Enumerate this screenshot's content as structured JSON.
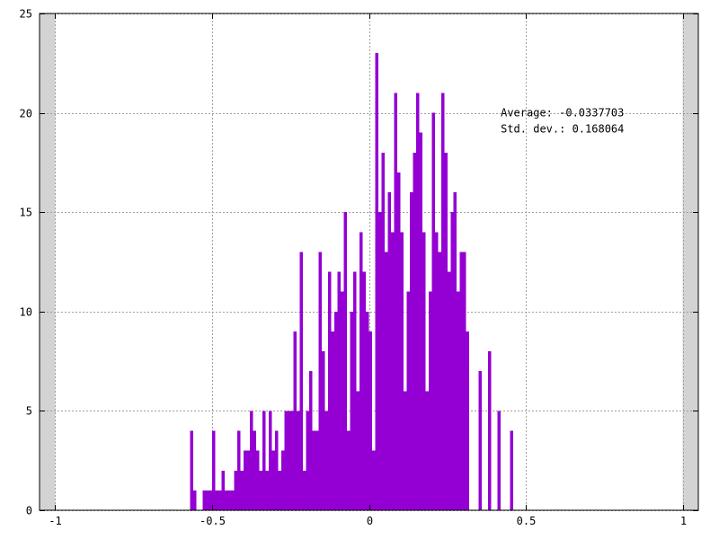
{
  "chart_data": {
    "type": "bar",
    "title": "",
    "xlabel": "",
    "ylabel": "",
    "xlim": [
      -1.05,
      1.05
    ],
    "ylim": [
      0,
      25
    ],
    "grid": true,
    "legend": "none",
    "bar_color": "#9400d3",
    "shaded_regions_color": "#d3d3d3",
    "shaded_regions": [
      [
        -1.05,
        -1.0
      ],
      [
        1.0,
        1.05
      ]
    ],
    "bin_width": 0.01,
    "x_ticks": [
      {
        "value": -1,
        "label": "-1"
      },
      {
        "value": -0.5,
        "label": "-0.5"
      },
      {
        "value": 0,
        "label": "0"
      },
      {
        "value": 0.5,
        "label": "0.5"
      },
      {
        "value": 1,
        "label": "1"
      }
    ],
    "y_ticks": [
      {
        "value": 0,
        "label": "0"
      },
      {
        "value": 5,
        "label": "5"
      },
      {
        "value": 10,
        "label": "10"
      },
      {
        "value": 15,
        "label": "15"
      },
      {
        "value": 20,
        "label": "20"
      },
      {
        "value": 25,
        "label": "25"
      }
    ],
    "annotations": [
      {
        "text": "Average: -0.0337703",
        "x": 0.42,
        "y": 20
      },
      {
        "text": "Std. dev.: 0.168064",
        "x": 0.42,
        "y": 19.2
      }
    ],
    "bin_starts": [
      -0.57,
      -0.56,
      -0.53,
      -0.52,
      -0.51,
      -0.5,
      -0.49,
      -0.48,
      -0.47,
      -0.46,
      -0.45,
      -0.44,
      -0.43,
      -0.42,
      -0.41,
      -0.4,
      -0.39,
      -0.38,
      -0.37,
      -0.36,
      -0.35,
      -0.34,
      -0.33,
      -0.32,
      -0.31,
      -0.3,
      -0.29,
      -0.28,
      -0.27,
      -0.26,
      -0.25,
      -0.24,
      -0.23,
      -0.22,
      -0.21,
      -0.2,
      -0.19,
      -0.18,
      -0.17,
      -0.16,
      -0.15,
      -0.14,
      -0.13,
      -0.12,
      -0.11,
      -0.1,
      -0.09,
      -0.08,
      -0.07,
      -0.06,
      -0.05,
      -0.04,
      -0.03,
      -0.02,
      -0.01,
      0.0,
      0.01,
      0.02,
      0.03,
      0.04,
      0.05,
      0.06,
      0.07,
      0.08,
      0.09,
      0.1,
      0.11,
      0.12,
      0.13,
      0.14,
      0.15,
      0.16,
      0.17,
      0.18,
      0.19,
      0.2,
      0.21,
      0.22,
      0.23,
      0.24,
      0.25,
      0.26,
      0.27,
      0.28,
      0.29,
      0.3,
      0.31,
      0.35,
      0.38,
      0.41,
      0.45
    ],
    "counts": [
      4,
      1,
      1,
      1,
      1,
      4,
      1,
      1,
      2,
      1,
      1,
      1,
      2,
      4,
      2,
      3,
      3,
      5,
      4,
      3,
      2,
      5,
      2,
      5,
      3,
      4,
      2,
      3,
      5,
      5,
      5,
      9,
      5,
      13,
      2,
      5,
      7,
      4,
      4,
      13,
      8,
      5,
      12,
      9,
      10,
      12,
      11,
      15,
      4,
      10,
      12,
      6,
      14,
      12,
      10,
      9,
      3,
      23,
      15,
      18,
      13,
      16,
      14,
      21,
      17,
      14,
      6,
      11,
      16,
      18,
      21,
      19,
      14,
      6,
      11,
      20,
      14,
      13,
      21,
      18,
      12,
      15,
      16,
      11,
      13,
      13,
      9,
      7,
      8,
      5,
      4
    ]
  }
}
